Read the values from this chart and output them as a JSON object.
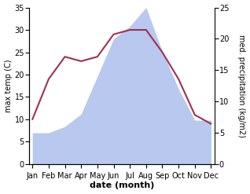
{
  "months": [
    "Jan",
    "Feb",
    "Mar",
    "Apr",
    "May",
    "Jun",
    "Jul",
    "Aug",
    "Sep",
    "Oct",
    "Nov",
    "Dec"
  ],
  "temperature": [
    10.0,
    19.0,
    24.0,
    23.0,
    24.0,
    29.0,
    30.0,
    30.0,
    25.0,
    19.0,
    11.0,
    9.0
  ],
  "precipitation": [
    5.0,
    5.0,
    6.0,
    8.0,
    14.0,
    20.0,
    22.0,
    25.0,
    18.0,
    12.0,
    7.0,
    7.0
  ],
  "temp_color": "#a03050",
  "precip_color": "#b8c8ee",
  "temp_ylim": [
    0,
    35
  ],
  "precip_ylim": [
    0,
    25
  ],
  "temp_yticks": [
    0,
    5,
    10,
    15,
    20,
    25,
    30,
    35
  ],
  "precip_yticks": [
    0,
    5,
    10,
    15,
    20,
    25
  ],
  "xlabel": "date (month)",
  "ylabel_left": "max temp (C)",
  "ylabel_right": "med. precipitation (kg/m2)",
  "xlabel_fontsize": 8,
  "ylabel_fontsize": 7,
  "tick_fontsize": 7
}
